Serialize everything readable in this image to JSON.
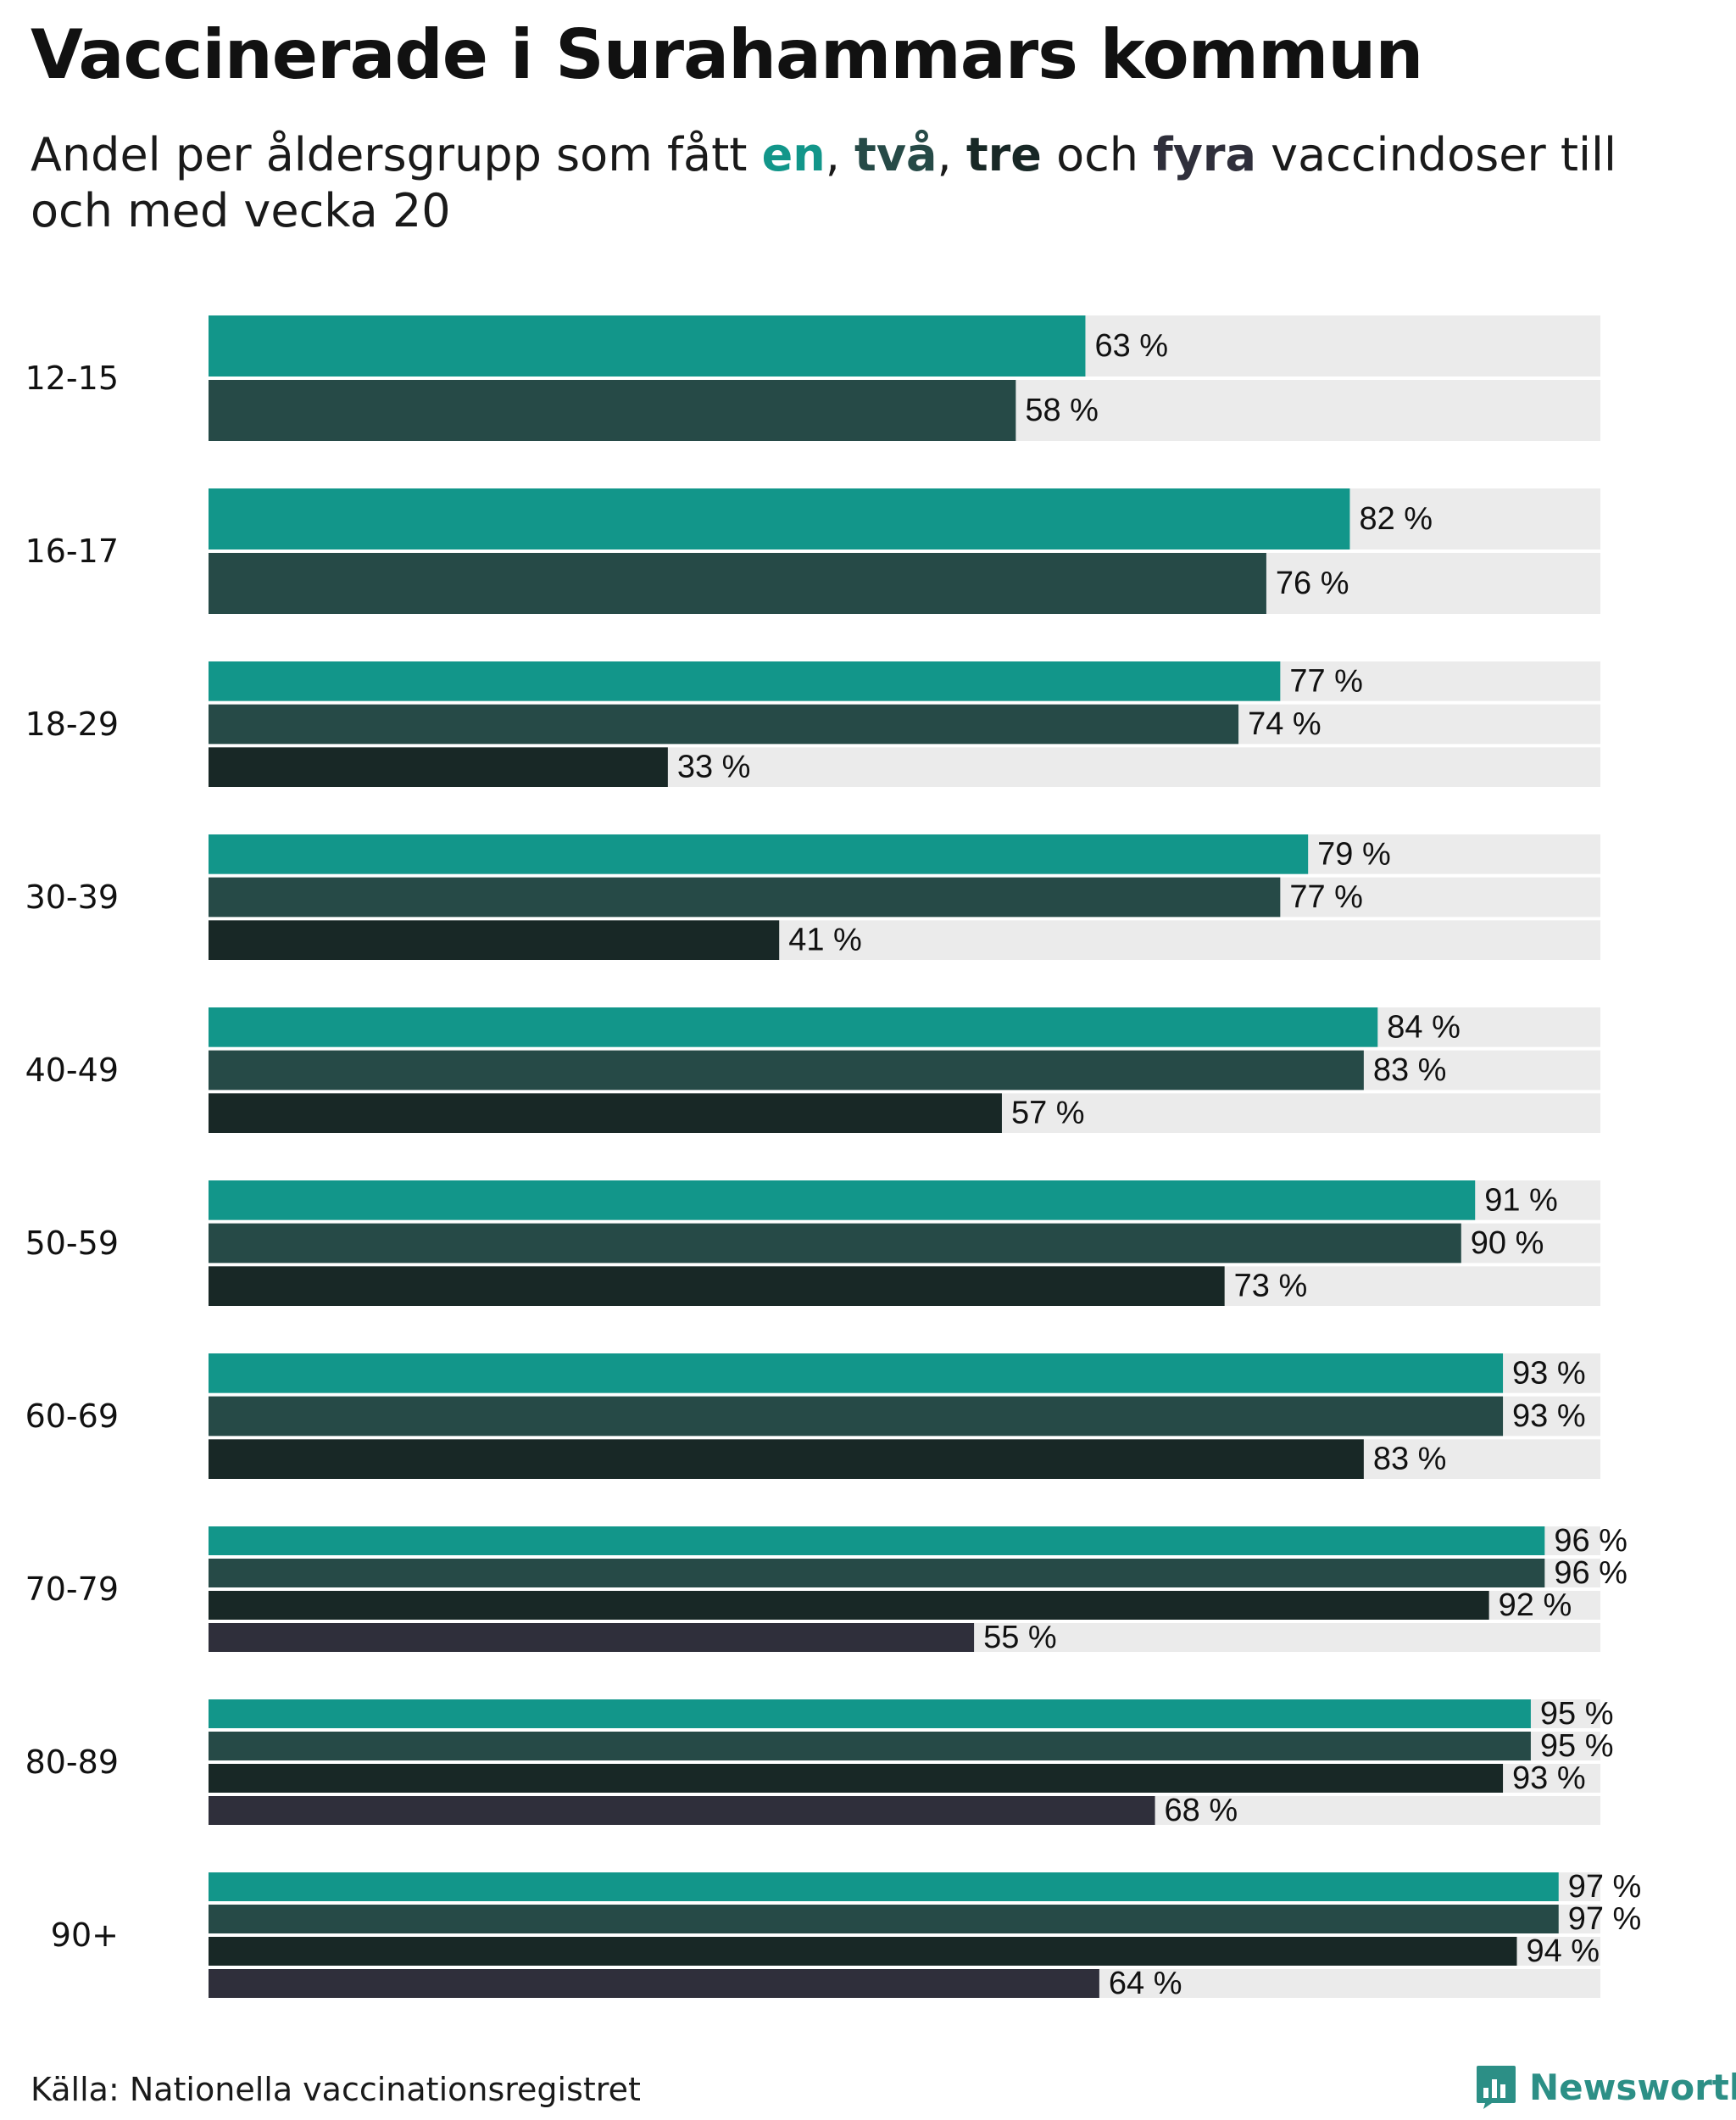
{
  "title": "Vaccinerade i Surahammars kommun",
  "subtitle": {
    "before": "Andel per åldersgrupp som fått ",
    "dose1": "en",
    "sep1": ", ",
    "dose2": "två",
    "sep2": ", ",
    "dose3": "tre",
    "sep3": " och ",
    "dose4": "fyra",
    "after": " vaccindoser till och med vecka 20"
  },
  "source": "Källa: Nationella vaccinationsregistret",
  "logo": {
    "text": "Newsworthy",
    "icon": "newsworthy-chart-icon",
    "color": "#2c8f86"
  },
  "colors": {
    "dose1": "#12968a",
    "dose2": "#264a47",
    "dose3": "#182826",
    "dose4": "#2f2f3b",
    "track": "#ebebeb",
    "label": "#111111"
  },
  "chart_data": {
    "type": "bar",
    "orientation": "horizontal",
    "value_suffix": " %",
    "xlim": [
      0,
      100
    ],
    "grid": false,
    "categories": [
      "12-15",
      "16-17",
      "18-29",
      "30-39",
      "40-49",
      "50-59",
      "60-69",
      "70-79",
      "80-89",
      "90+"
    ],
    "series": [
      {
        "name": "en",
        "values": [
          63,
          82,
          77,
          79,
          84,
          91,
          93,
          96,
          95,
          97
        ]
      },
      {
        "name": "två",
        "values": [
          58,
          76,
          74,
          77,
          83,
          90,
          93,
          96,
          95,
          97
        ]
      },
      {
        "name": "tre",
        "values": [
          null,
          null,
          33,
          41,
          57,
          73,
          83,
          92,
          93,
          94
        ]
      },
      {
        "name": "fyra",
        "values": [
          null,
          null,
          null,
          null,
          null,
          null,
          null,
          55,
          68,
          64
        ]
      }
    ]
  }
}
